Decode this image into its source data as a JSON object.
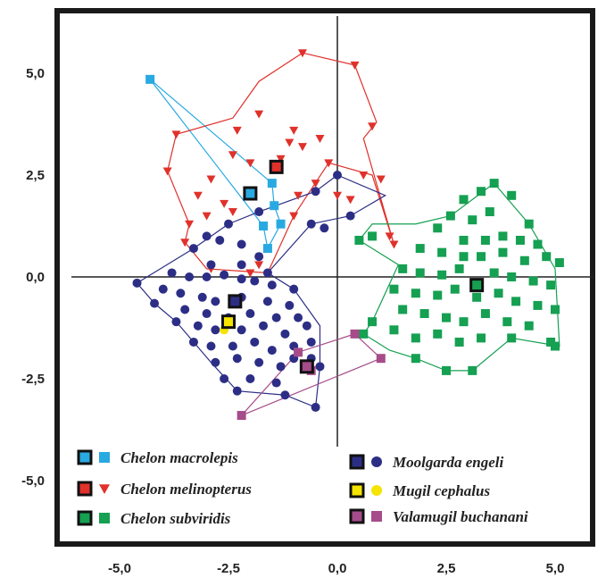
{
  "chart_data": {
    "type": "scatter",
    "title": "",
    "xlabel": "",
    "ylabel": "",
    "xlim": [
      -6.5,
      6.5
    ],
    "ylim": [
      -6.3,
      6.5
    ],
    "xticks": [
      -5,
      -2.5,
      0,
      2.5,
      5
    ],
    "xtick_labels": [
      "-5,0",
      "-2,5",
      "0,0",
      "2,5",
      "5,0"
    ],
    "yticks": [
      5,
      2.5,
      0,
      -2.5,
      -5
    ],
    "ytick_labels": [
      "5,0",
      "2,5",
      "0,0",
      "-2,5",
      "-5,0"
    ],
    "grid": false,
    "legend_position": "bottom-left",
    "series": [
      {
        "name": "Chelon macrolepis",
        "color": "#29a9e1",
        "marker": "square",
        "centroid": [
          -2.0,
          2.05
        ],
        "points": [
          [
            -4.3,
            4.85
          ],
          [
            -1.5,
            2.3
          ],
          [
            -1.45,
            1.75
          ],
          [
            -1.3,
            1.3
          ],
          [
            -1.7,
            1.25
          ],
          [
            -1.6,
            0.7
          ]
        ],
        "hull": [
          [
            -4.3,
            4.85
          ],
          [
            -1.5,
            2.3
          ],
          [
            -1.45,
            1.75
          ],
          [
            -1.3,
            1.3
          ],
          [
            -1.6,
            0.7
          ],
          [
            -1.7,
            1.25
          ],
          [
            -4.3,
            4.85
          ]
        ]
      },
      {
        "name": "Chelon melinopterus",
        "color": "#e0312b",
        "marker": "triangle-down",
        "centroid": [
          -1.4,
          2.7
        ],
        "points": [
          [
            -0.8,
            5.5
          ],
          [
            0.4,
            5.2
          ],
          [
            -1.8,
            4.0
          ],
          [
            -2.3,
            3.6
          ],
          [
            -1.1,
            3.3
          ],
          [
            -1.0,
            3.6
          ],
          [
            -0.8,
            3.2
          ],
          [
            -0.4,
            3.4
          ],
          [
            0.8,
            3.7
          ],
          [
            -3.7,
            3.5
          ],
          [
            -2.4,
            3.0
          ],
          [
            -2.0,
            2.8
          ],
          [
            -1.3,
            2.9
          ],
          [
            -0.2,
            2.8
          ],
          [
            -3.9,
            2.6
          ],
          [
            -2.9,
            2.4
          ],
          [
            -3.2,
            2.0
          ],
          [
            -2.6,
            1.8
          ],
          [
            -3.4,
            1.3
          ],
          [
            -3.0,
            1.5
          ],
          [
            -2.4,
            1.6
          ],
          [
            -1.0,
            1.5
          ],
          [
            -0.9,
            2.0
          ],
          [
            0.6,
            2.5
          ],
          [
            1.0,
            2.4
          ],
          [
            1.2,
            1.0
          ],
          [
            1.3,
            0.8
          ],
          [
            -0.5,
            2.3
          ],
          [
            0.3,
            1.9
          ],
          [
            -1.8,
            0.3
          ],
          [
            -3.5,
            0.85
          ],
          [
            -2.9,
            0.2
          ],
          [
            -2.0,
            0.1
          ],
          [
            0.0,
            2.0
          ]
        ],
        "hull": [
          [
            -0.8,
            5.5
          ],
          [
            0.4,
            5.2
          ],
          [
            0.9,
            3.8
          ],
          [
            0.6,
            3.4
          ],
          [
            1.3,
            0.8
          ],
          [
            0.8,
            2.5
          ],
          [
            -0.2,
            2.8
          ],
          [
            -1.0,
            1.5
          ],
          [
            -1.6,
            0.1
          ],
          [
            -3.0,
            0.2
          ],
          [
            -3.5,
            0.85
          ],
          [
            -3.4,
            1.3
          ],
          [
            -3.9,
            2.6
          ],
          [
            -3.7,
            3.5
          ],
          [
            -2.4,
            3.9
          ],
          [
            -1.8,
            4.8
          ],
          [
            -0.8,
            5.5
          ]
        ]
      },
      {
        "name": "Chelon subviridis",
        "color": "#15a052",
        "marker": "square",
        "centroid": [
          3.2,
          -0.2
        ],
        "points": [
          [
            3.6,
            2.3
          ],
          [
            2.9,
            1.9
          ],
          [
            3.3,
            2.1
          ],
          [
            4.0,
            2.0
          ],
          [
            2.6,
            1.5
          ],
          [
            3.1,
            1.4
          ],
          [
            3.5,
            1.6
          ],
          [
            4.4,
            1.3
          ],
          [
            2.3,
            1.2
          ],
          [
            2.9,
            0.9
          ],
          [
            3.4,
            0.9
          ],
          [
            3.8,
            1.0
          ],
          [
            4.2,
            0.9
          ],
          [
            4.6,
            0.8
          ],
          [
            1.9,
            0.7
          ],
          [
            2.4,
            0.6
          ],
          [
            2.9,
            0.5
          ],
          [
            3.3,
            0.5
          ],
          [
            3.8,
            0.6
          ],
          [
            4.3,
            0.4
          ],
          [
            4.8,
            0.5
          ],
          [
            5.1,
            0.35
          ],
          [
            1.5,
            0.2
          ],
          [
            1.9,
            0.1
          ],
          [
            2.4,
            0.05
          ],
          [
            2.8,
            0.2
          ],
          [
            3.6,
            0.1
          ],
          [
            4.0,
            0.0
          ],
          [
            4.5,
            -0.1
          ],
          [
            4.9,
            -0.2
          ],
          [
            1.3,
            -0.3
          ],
          [
            1.8,
            -0.4
          ],
          [
            2.3,
            -0.45
          ],
          [
            2.7,
            -0.3
          ],
          [
            3.2,
            -0.5
          ],
          [
            3.7,
            -0.4
          ],
          [
            4.1,
            -0.6
          ],
          [
            4.6,
            -0.7
          ],
          [
            5.0,
            -0.8
          ],
          [
            1.5,
            -0.8
          ],
          [
            2.0,
            -0.9
          ],
          [
            2.5,
            -1.0
          ],
          [
            2.9,
            -1.1
          ],
          [
            3.4,
            -0.9
          ],
          [
            3.9,
            -1.1
          ],
          [
            4.4,
            -1.2
          ],
          [
            0.8,
            -1.1
          ],
          [
            1.3,
            -1.3
          ],
          [
            1.8,
            -1.5
          ],
          [
            2.3,
            -1.4
          ],
          [
            2.8,
            -1.6
          ],
          [
            3.3,
            -1.5
          ],
          [
            4.0,
            -1.5
          ],
          [
            4.9,
            -1.6
          ],
          [
            5.0,
            -1.7
          ],
          [
            1.8,
            -2.0
          ],
          [
            2.5,
            -2.3
          ],
          [
            3.1,
            -2.3
          ],
          [
            0.8,
            1.0
          ],
          [
            0.5,
            0.9
          ],
          [
            0.6,
            -1.4
          ]
        ],
        "hull": [
          [
            3.6,
            2.3
          ],
          [
            4.4,
            1.3
          ],
          [
            5.0,
            0.2
          ],
          [
            5.1,
            -1.7
          ],
          [
            4.0,
            -1.5
          ],
          [
            3.1,
            -2.3
          ],
          [
            2.5,
            -2.3
          ],
          [
            1.8,
            -2.0
          ],
          [
            1.2,
            -1.8
          ],
          [
            0.6,
            -1.4
          ],
          [
            0.8,
            -1.1
          ],
          [
            1.4,
            0.3
          ],
          [
            0.5,
            0.9
          ],
          [
            0.8,
            1.3
          ],
          [
            1.8,
            1.3
          ],
          [
            2.6,
            1.5
          ],
          [
            3.6,
            2.3
          ]
        ]
      },
      {
        "name": "Moolgarda engeli",
        "color": "#2c2e86",
        "marker": "circle",
        "centroid": [
          -2.35,
          -0.6
        ],
        "points": [
          [
            0.0,
            2.5
          ],
          [
            -0.6,
            1.3
          ],
          [
            -1.8,
            1.6
          ],
          [
            -2.5,
            1.3
          ],
          [
            -3.0,
            1.0
          ],
          [
            -2.7,
            0.9
          ],
          [
            -3.3,
            0.7
          ],
          [
            -2.2,
            0.8
          ],
          [
            -1.8,
            0.5
          ],
          [
            -2.9,
            0.3
          ],
          [
            -2.2,
            0.3
          ],
          [
            -1.6,
            0.1
          ],
          [
            -1.0,
            -0.3
          ],
          [
            -3.8,
            0.1
          ],
          [
            -3.4,
            0.0
          ],
          [
            -3.0,
            0.0
          ],
          [
            -2.6,
            0.05
          ],
          [
            -2.2,
            -0.05
          ],
          [
            -1.9,
            -0.1
          ],
          [
            -1.5,
            -0.2
          ],
          [
            -4.6,
            -0.15
          ],
          [
            -4.0,
            -0.3
          ],
          [
            -3.6,
            -0.4
          ],
          [
            -3.1,
            -0.5
          ],
          [
            -2.8,
            -0.6
          ],
          [
            -2.2,
            -0.5
          ],
          [
            -1.6,
            -0.6
          ],
          [
            -1.1,
            -0.7
          ],
          [
            -4.2,
            -0.65
          ],
          [
            -3.5,
            -0.8
          ],
          [
            -3.0,
            -0.9
          ],
          [
            -2.5,
            -1.0
          ],
          [
            -2.0,
            -0.9
          ],
          [
            -1.4,
            -1.0
          ],
          [
            -0.9,
            -1.0
          ],
          [
            -3.7,
            -1.1
          ],
          [
            -3.2,
            -1.2
          ],
          [
            -2.8,
            -1.3
          ],
          [
            -2.2,
            -1.3
          ],
          [
            -1.7,
            -1.2
          ],
          [
            -1.2,
            -1.4
          ],
          [
            -0.7,
            -1.2
          ],
          [
            -3.3,
            -1.6
          ],
          [
            -2.9,
            -1.7
          ],
          [
            -2.4,
            -1.7
          ],
          [
            -1.9,
            -1.6
          ],
          [
            -1.5,
            -1.8
          ],
          [
            -1.0,
            -1.7
          ],
          [
            -0.6,
            -1.6
          ],
          [
            -2.8,
            -2.1
          ],
          [
            -2.3,
            -2.0
          ],
          [
            -1.8,
            -2.1
          ],
          [
            -1.3,
            -2.2
          ],
          [
            -2.6,
            -2.5
          ],
          [
            -2.0,
            -2.5
          ],
          [
            -1.4,
            -2.6
          ],
          [
            -2.3,
            -2.8
          ],
          [
            -1.0,
            -2.0
          ],
          [
            -0.6,
            -2.0
          ],
          [
            -0.4,
            -2.2
          ],
          [
            -0.5,
            -3.2
          ],
          [
            -1.2,
            -2.9
          ],
          [
            -0.3,
            1.2
          ],
          [
            0.3,
            1.5
          ],
          [
            -0.5,
            2.1
          ]
        ],
        "hull": [
          [
            0.0,
            2.5
          ],
          [
            1.1,
            2.0
          ],
          [
            0.3,
            1.5
          ],
          [
            -0.6,
            1.3
          ],
          [
            -1.6,
            0.1
          ],
          [
            -1.0,
            -0.3
          ],
          [
            -0.4,
            -1.2
          ],
          [
            -0.4,
            -2.2
          ],
          [
            -0.5,
            -3.2
          ],
          [
            -1.2,
            -2.9
          ],
          [
            -2.3,
            -2.8
          ],
          [
            -2.9,
            -2.1
          ],
          [
            -3.7,
            -1.1
          ],
          [
            -4.2,
            -0.65
          ],
          [
            -4.6,
            -0.15
          ],
          [
            -3.3,
            0.7
          ],
          [
            -2.5,
            1.3
          ],
          [
            -1.8,
            1.6
          ],
          [
            -0.5,
            2.1
          ],
          [
            0.0,
            2.5
          ]
        ]
      },
      {
        "name": "Mugil cephalus",
        "color": "#f5e300",
        "marker": "circle",
        "centroid": [
          -2.5,
          -1.1
        ],
        "points": [
          [
            -2.6,
            -1.3
          ],
          [
            -2.45,
            -1.1
          ]
        ],
        "hull": []
      },
      {
        "name": "Valamugil buchanani",
        "color": "#a64c8a",
        "marker": "square",
        "centroid": [
          -0.7,
          -2.2
        ],
        "points": [
          [
            -2.2,
            -3.4
          ],
          [
            -0.9,
            -1.85
          ],
          [
            0.4,
            -1.4
          ],
          [
            1.0,
            -2.0
          ],
          [
            -0.6,
            -2.3
          ]
        ],
        "hull": [
          [
            -2.2,
            -3.4
          ],
          [
            -0.9,
            -1.85
          ],
          [
            0.4,
            -1.4
          ],
          [
            1.0,
            -2.0
          ],
          [
            -2.2,
            -3.4
          ]
        ]
      }
    ]
  }
}
